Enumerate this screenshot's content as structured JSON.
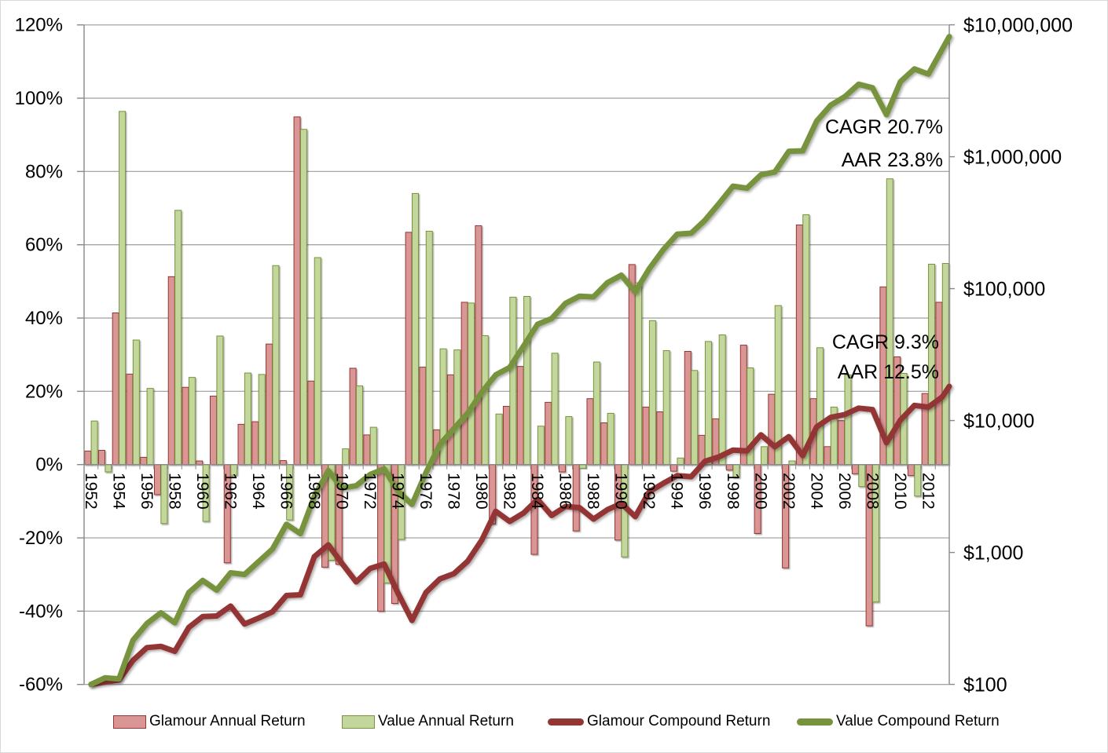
{
  "chart_data": {
    "type": "bar",
    "subtype": "combo-bar-line-log",
    "title": "",
    "years": [
      1952,
      1953,
      1954,
      1955,
      1956,
      1957,
      1958,
      1959,
      1960,
      1961,
      1962,
      1963,
      1964,
      1965,
      1966,
      1967,
      1968,
      1969,
      1970,
      1971,
      1972,
      1973,
      1974,
      1975,
      1976,
      1977,
      1978,
      1979,
      1980,
      1981,
      1982,
      1983,
      1984,
      1985,
      1986,
      1987,
      1988,
      1989,
      1990,
      1991,
      1992,
      1993,
      1994,
      1995,
      1996,
      1997,
      1998,
      1999,
      2000,
      2001,
      2002,
      2003,
      2004,
      2005,
      2006,
      2007,
      2008,
      2009,
      2010,
      2011,
      2012,
      2013
    ],
    "x_tick_labels": [
      "1952",
      "1954",
      "1956",
      "1958",
      "1960",
      "1962",
      "1964",
      "1966",
      "1968",
      "1970",
      "1972",
      "1974",
      "1976",
      "1978",
      "1980",
      "1982",
      "1984",
      "1986",
      "1988",
      "1990",
      "1992",
      "1994",
      "1996",
      "1998",
      "2000",
      "2002",
      "2004",
      "2006",
      "2008",
      "2010",
      "2012"
    ],
    "left_axis": {
      "unit": "percent",
      "min": -60,
      "max": 120,
      "step": 20,
      "tick_labels": [
        "120%",
        "100%",
        "80%",
        "60%",
        "40%",
        "20%",
        "0%",
        "-20%",
        "-40%",
        "-60%"
      ]
    },
    "right_axis": {
      "unit": "dollars",
      "scale": "log10",
      "min": 100,
      "max": 10000000,
      "tick_labels": [
        "$10,000,000",
        "$1,000,000",
        "$100,000",
        "$10,000",
        "$1,000",
        "$100"
      ]
    },
    "grid": true,
    "legend_position": "bottom",
    "series": [
      {
        "name": "Glamour Annual Return",
        "type": "bar",
        "axis": "left",
        "values": [
          3.7,
          3.9,
          41.4,
          24.7,
          2.0,
          -8.2,
          51.3,
          21.1,
          1.0,
          18.7,
          -26.8,
          11.0,
          11.7,
          32.9,
          1.1,
          94.9,
          22.8,
          -28.0,
          -27.2,
          26.3,
          8.1,
          -40.0,
          -37.9,
          63.4,
          26.6,
          9.5,
          24.5,
          44.3,
          65.2,
          -16.2,
          15.9,
          26.8,
          -24.5,
          17.0,
          -2.0,
          -18.1,
          18.0,
          11.4,
          -20.6,
          54.6,
          15.7,
          14.4,
          -1.8,
          30.9,
          8.0,
          12.5,
          -1.5,
          32.6,
          -18.8,
          19.2,
          -28.2,
          65.4,
          18.0,
          4.9,
          12.0,
          -2.5,
          -44.0,
          48.5,
          29.4,
          -3.0,
          19.4,
          44.3
        ]
      },
      {
        "name": "Value Annual Return",
        "type": "bar",
        "axis": "left",
        "values": [
          11.9,
          -2.0,
          96.4,
          34.0,
          20.8,
          -16.1,
          69.4,
          23.8,
          -15.5,
          35.1,
          -2.9,
          25.0,
          24.6,
          54.3,
          -15.1,
          91.5,
          56.5,
          -26.1,
          4.3,
          21.5,
          10.2,
          -32.3,
          -20.4,
          74.0,
          63.7,
          31.6,
          31.3,
          44.1,
          35.2,
          13.8,
          45.7,
          45.9,
          10.5,
          30.4,
          13.1,
          -1.0,
          28.0,
          14.0,
          -25.2,
          49.6,
          39.3,
          31.1,
          1.8,
          25.7,
          33.6,
          35.4,
          -3.5,
          26.4,
          4.9,
          43.4,
          1.0,
          68.2,
          31.9,
          15.7,
          24.5,
          -6.0,
          -37.5,
          78.0,
          24.9,
          -8.6,
          54.7,
          54.9
        ]
      },
      {
        "name": "Glamour Compound Return",
        "type": "line",
        "axis": "right",
        "edge_value": 18140,
        "values": [
          100,
          104,
          108,
          152,
          190,
          194,
          178,
          270,
          327,
          330,
          392,
          287,
          318,
          355,
          472,
          478,
          930,
          1142,
          822,
          598,
          756,
          817,
          490,
          305,
          498,
          630,
          691,
          860,
          1242,
          2051,
          1719,
          1992,
          2526,
          1907,
          2231,
          2186,
          1790,
          2112,
          2353,
          1868,
          2888,
          3341,
          3822,
          3753,
          4913,
          5306,
          5969,
          5880,
          7797,
          6331,
          7547,
          5419,
          8963,
          10576,
          11094,
          12425,
          12114,
          6784,
          10074,
          13036,
          12645,
          15098
        ]
      },
      {
        "name": "Value Compound Return",
        "type": "line",
        "axis": "right",
        "edge_value": 8141000,
        "values": [
          100,
          112,
          110,
          216,
          289,
          349,
          293,
          496,
          614,
          519,
          701,
          681,
          851,
          1060,
          1636,
          1389,
          2660,
          4163,
          3076,
          3208,
          3898,
          4296,
          2908,
          2315,
          4028,
          6594,
          8678,
          11394,
          16419,
          22199,
          25262,
          36807,
          53701,
          59340,
          77379,
          87516,
          86641,
          110900,
          126426,
          94567,
          141472,
          197071,
          258360,
          263010,
          330604,
          441687,
          598044,
          577113,
          729471,
          765215,
          1097318,
          1108291,
          1864146,
          2458809,
          2844843,
          3541829,
          3329319,
          2080824,
          3703867,
          4626130,
          4228283,
          6541154
        ]
      }
    ],
    "annotations": [
      {
        "id": "value-cagr",
        "text": "CAGR 20.7%"
      },
      {
        "id": "value-aar",
        "text": "AAR 23.8%"
      },
      {
        "id": "glamour-cagr",
        "text": "CAGR 9.3%"
      },
      {
        "id": "glamour-aar",
        "text": "AAR 12.5%"
      }
    ]
  },
  "colors": {
    "glamour_bar_fill": "#D99694",
    "glamour_bar_border": "#943634",
    "value_bar_fill": "#C3D69B",
    "value_bar_border": "#77933C",
    "glamour_line": "#943634",
    "value_line": "#77933C",
    "gridline": "#A6A6A6",
    "axis": "#898989",
    "tick": "#898989",
    "text": "#000000"
  },
  "legend": {
    "items": [
      {
        "label": "Glamour Annual Return",
        "swatch": "bar-pink"
      },
      {
        "label": "Value Annual Return",
        "swatch": "bar-green"
      },
      {
        "label": "Glamour Compound Return",
        "swatch": "line-darkred"
      },
      {
        "label": "Value Compound Return",
        "swatch": "line-olive"
      }
    ]
  }
}
